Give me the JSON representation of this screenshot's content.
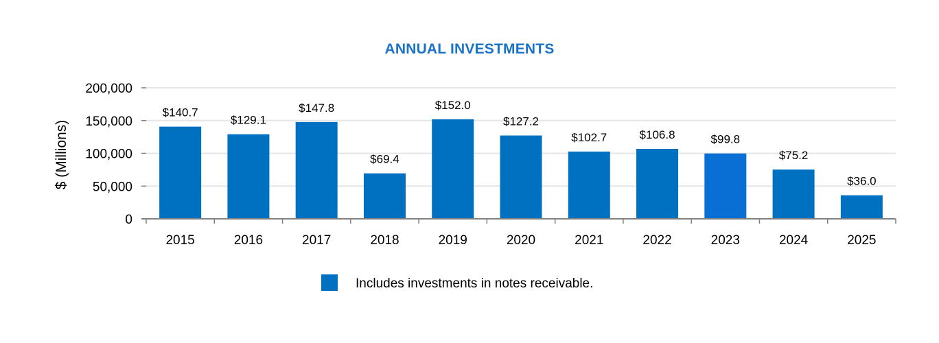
{
  "chart_data": {
    "type": "bar",
    "title": "ANNUAL INVESTMENTS",
    "xlabel": "",
    "ylabel": "$ (Millions)",
    "categories": [
      "2015",
      "2016",
      "2017",
      "2018",
      "2019",
      "2020",
      "2021",
      "2022",
      "2023",
      "2024",
      "2025"
    ],
    "values": [
      140700,
      129100,
      147800,
      69400,
      152000,
      127200,
      102700,
      106800,
      99800,
      75200,
      36000
    ],
    "data_labels": [
      "$140.7",
      "$129.1",
      "$147.8",
      "$69.4",
      "$152.0",
      "$127.2",
      "$102.7",
      "$106.8",
      "$99.8",
      "$75.2",
      "$36.0"
    ],
    "yticks": [
      0,
      50000,
      100000,
      150000,
      200000
    ],
    "ytick_labels": [
      "0",
      "50,000",
      "100,000",
      "150,000",
      "200,000"
    ],
    "ylim": [
      0,
      200000
    ],
    "grid": true,
    "legend": {
      "placement": "bottom-center",
      "entries": [
        {
          "label": "Includes investments in notes receivable.",
          "color": "#0070c0"
        }
      ]
    },
    "colors": {
      "bar": "#0070c0",
      "bar_highlight": "#0a6fd4",
      "title": "#1a73c8",
      "grid": "#e6e6e6",
      "axis": "#808080"
    }
  }
}
